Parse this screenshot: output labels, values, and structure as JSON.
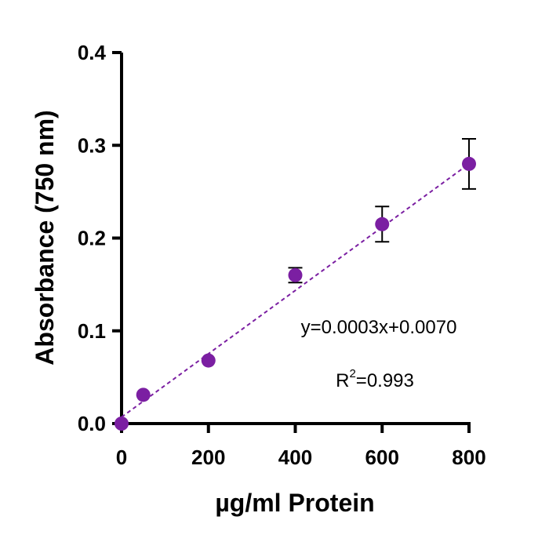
{
  "chart_data": {
    "type": "scatter",
    "xlabel": "µg/ml Protein",
    "ylabel": "Absorbance (750 nm)",
    "xlim": [
      0,
      800
    ],
    "ylim": [
      0,
      0.4
    ],
    "x_ticks": [
      0,
      200,
      400,
      600,
      800
    ],
    "x_tick_labels": [
      "0",
      "200",
      "400",
      "600",
      "800"
    ],
    "y_ticks": [
      0.0,
      0.1,
      0.2,
      0.3,
      0.4
    ],
    "y_tick_labels": [
      "0.0",
      "0.1",
      "0.2",
      "0.3",
      "0.4"
    ],
    "grid": false,
    "legend": "none",
    "series": [
      {
        "x": [
          0,
          50,
          200,
          400,
          600,
          800
        ],
        "y": [
          0.0,
          0.031,
          0.068,
          0.16,
          0.215,
          0.28
        ],
        "error": [
          0.0,
          0.0,
          0.0,
          0.008,
          0.019,
          0.027
        ],
        "color": "#7B1FA2"
      }
    ],
    "fit": {
      "x": [
        0,
        800
      ],
      "y": [
        0.007,
        0.28
      ],
      "style": "dashed",
      "color": "#7B1FA2"
    },
    "annotations": {
      "equation": "y=0.0003x+0.0070",
      "r2_prefix": "R",
      "r2_sup": "2",
      "r2_suffix": "=0.993"
    }
  }
}
